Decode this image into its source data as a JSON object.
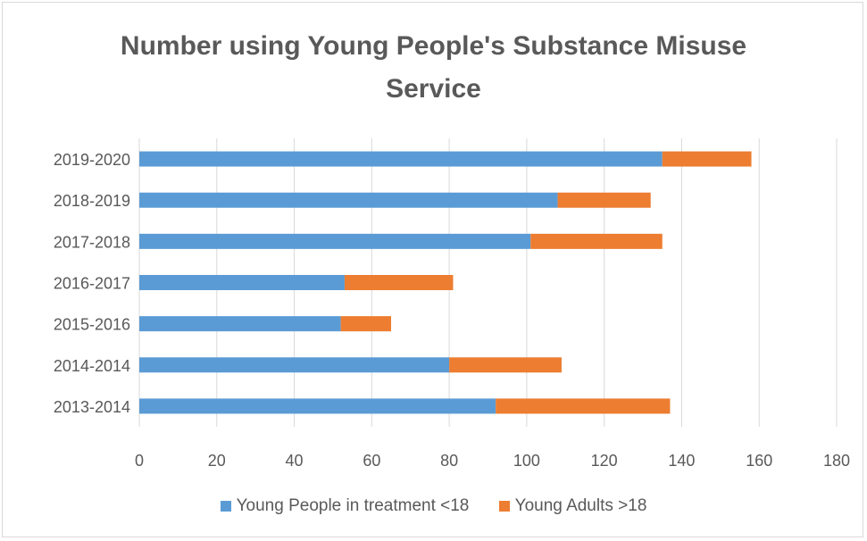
{
  "chart_data": {
    "type": "bar",
    "orientation": "horizontal",
    "stacked": true,
    "title_lines": [
      "Number using Young People's Substance Misuse",
      "Service"
    ],
    "categories": [
      "2013-2014",
      "2014-2014",
      "2015-2016",
      "2016-2017",
      "2017-2018",
      "2018-2019",
      "2019-2020"
    ],
    "series": [
      {
        "name": "Young People in treatment <18",
        "color": "#5b9bd5",
        "values": [
          92,
          80,
          52,
          53,
          101,
          108,
          135
        ]
      },
      {
        "name": "Young Adults >18",
        "color": "#ed7d31",
        "values": [
          45,
          29,
          13,
          28,
          34,
          24,
          23
        ]
      }
    ],
    "xlim": [
      0,
      180
    ],
    "xticks": [
      "0",
      "20",
      "40",
      "60",
      "80",
      "100",
      "120",
      "140",
      "160",
      "180"
    ],
    "grid": true,
    "legend_position": "bottom"
  }
}
